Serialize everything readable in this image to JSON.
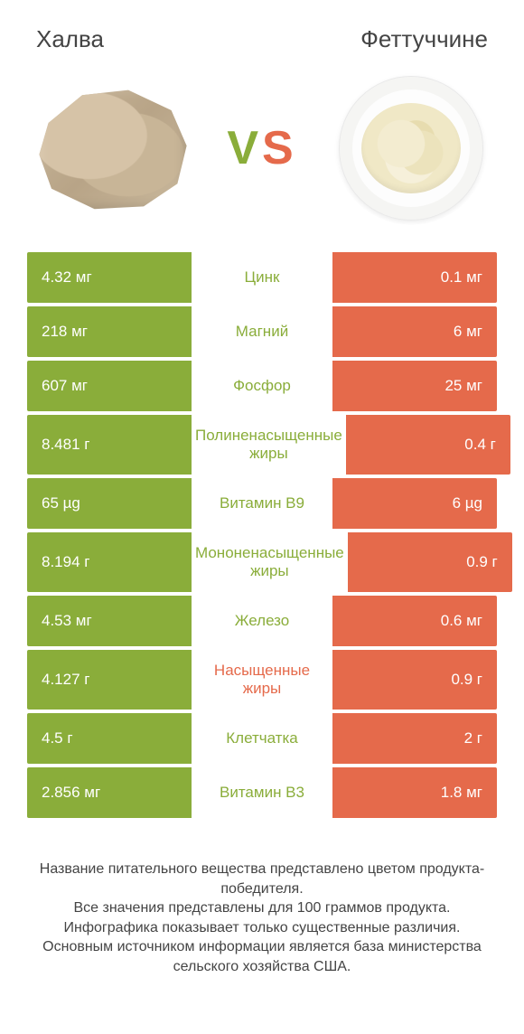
{
  "header": {
    "left_title": "Халва",
    "right_title": "Феттуччине",
    "vs_v": "V",
    "vs_s": "S"
  },
  "colors": {
    "left_bg": "#8aad3a",
    "right_bg": "#e56a4b",
    "left_text": "#8aad3a",
    "right_text": "#e56a4b",
    "row_gap_bg": "#ffffff",
    "page_bg": "#ffffff"
  },
  "comparison": {
    "type": "table",
    "rows": [
      {
        "left": "4.32 мг",
        "label": "Цинк",
        "right": "0.1 мг",
        "winner": "left",
        "tall": false
      },
      {
        "left": "218 мг",
        "label": "Магний",
        "right": "6 мг",
        "winner": "left",
        "tall": false
      },
      {
        "left": "607 мг",
        "label": "Фосфор",
        "right": "25 мг",
        "winner": "left",
        "tall": false
      },
      {
        "left": "8.481 г",
        "label": "Полиненасыщенные жиры",
        "right": "0.4 г",
        "winner": "left",
        "tall": true
      },
      {
        "left": "65 µg",
        "label": "Витамин B9",
        "right": "6 µg",
        "winner": "left",
        "tall": false
      },
      {
        "left": "8.194 г",
        "label": "Мононенасыщенные жиры",
        "right": "0.9 г",
        "winner": "left",
        "tall": true
      },
      {
        "left": "4.53 мг",
        "label": "Железо",
        "right": "0.6 мг",
        "winner": "left",
        "tall": false
      },
      {
        "left": "4.127 г",
        "label": "Насыщенные жиры",
        "right": "0.9 г",
        "winner": "right",
        "tall": true
      },
      {
        "left": "4.5 г",
        "label": "Клетчатка",
        "right": "2 г",
        "winner": "left",
        "tall": false
      },
      {
        "left": "2.856 мг",
        "label": "Витамин B3",
        "right": "1.8 мг",
        "winner": "left",
        "tall": false
      }
    ]
  },
  "footnote": {
    "line1": "Название питательного вещества представлено цветом продукта-победителя.",
    "line2": "Все значения представлены для 100 граммов продукта.",
    "line3": "Инфографика показывает только существенные различия.",
    "line4": "Основным источником информации является база министерства сельского хозяйства США."
  }
}
